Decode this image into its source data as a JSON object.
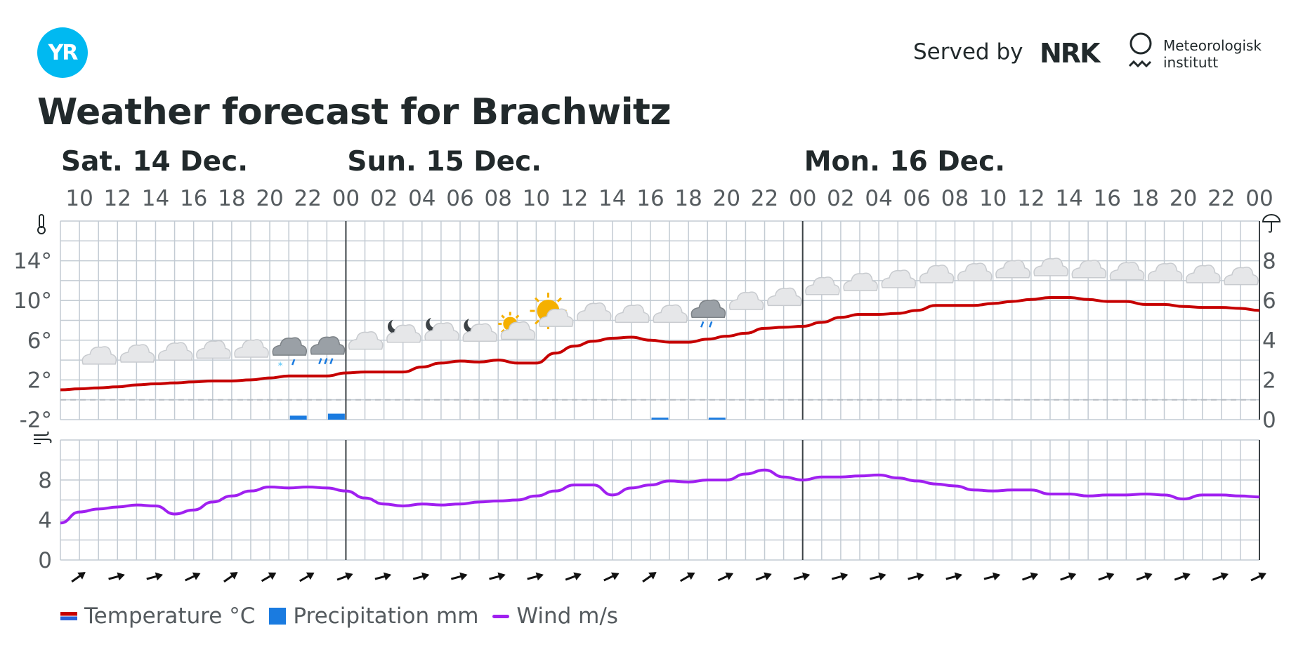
{
  "header": {
    "logo_text": "YR",
    "served_by": "Served by",
    "nrk": "NRK",
    "met_line1": "Meteorologisk",
    "met_line2": "institutt",
    "title": "Weather forecast for Brachwitz"
  },
  "colors": {
    "brand": "#00b9f1",
    "temperature": "#c60000",
    "precipitation": "#1a7be0",
    "wind": "#a020f0",
    "grid": "#c3cbd3"
  },
  "legend": {
    "temperature": "Temperature °C",
    "precipitation": "Precipitation mm",
    "wind": "Wind m/s"
  },
  "chart_data": [
    {
      "type": "line",
      "days": [
        {
          "label": "Sat. 14 Dec.",
          "start_hour": 9
        },
        {
          "label": "Sun. 15 Dec.",
          "start_hour": 24
        },
        {
          "label": "Mon. 16 Dec.",
          "start_hour": 48
        }
      ],
      "x": [
        9,
        10,
        11,
        12,
        13,
        14,
        15,
        16,
        17,
        18,
        19,
        20,
        21,
        22,
        23,
        24,
        25,
        26,
        27,
        28,
        29,
        30,
        31,
        32,
        33,
        34,
        35,
        36,
        37,
        38,
        39,
        40,
        41,
        42,
        43,
        44,
        45,
        46,
        47,
        48,
        49,
        50,
        51,
        52,
        53,
        54,
        55,
        56,
        57,
        58,
        59,
        60,
        61,
        62,
        63,
        64,
        65,
        66,
        67,
        68,
        69,
        70,
        71,
        72
      ],
      "x_tick_labels": [
        "10",
        "12",
        "14",
        "16",
        "18",
        "20",
        "22",
        "00",
        "02",
        "04",
        "06",
        "08",
        "10",
        "12",
        "14",
        "16",
        "18",
        "20",
        "22",
        "00",
        "02",
        "04",
        "06",
        "08",
        "10",
        "12",
        "14",
        "16",
        "18",
        "20",
        "22",
        "00"
      ],
      "left_axis": {
        "icon": "thermometer-icon",
        "ticks": [
          "14°",
          "10°",
          "6°",
          "2°",
          "-2°"
        ],
        "ylim": [
          -2,
          18
        ]
      },
      "right_axis": {
        "icon": "umbrella-icon",
        "ticks": [
          "8",
          "6",
          "4",
          "2",
          "0"
        ],
        "ylim": [
          0,
          10
        ]
      },
      "series": [
        {
          "key": "temperature",
          "axis": "left",
          "values": [
            1.0,
            1.1,
            1.2,
            1.3,
            1.5,
            1.6,
            1.7,
            1.8,
            1.9,
            1.9,
            2.0,
            2.2,
            2.4,
            2.4,
            2.4,
            2.7,
            2.8,
            2.8,
            2.8,
            3.3,
            3.7,
            3.9,
            3.8,
            4.0,
            3.7,
            3.7,
            4.7,
            5.4,
            5.9,
            6.2,
            6.3,
            6.0,
            5.8,
            5.8,
            6.1,
            6.4,
            6.7,
            7.2,
            7.3,
            7.4,
            7.8,
            8.3,
            8.6,
            8.6,
            8.7,
            9.0,
            9.5,
            9.5,
            9.5,
            9.7,
            9.9,
            10.1,
            10.3,
            10.3,
            10.1,
            9.9,
            9.9,
            9.6,
            9.6,
            9.4,
            9.3,
            9.3,
            9.2,
            9.0
          ]
        },
        {
          "key": "precipitation",
          "axis": "right",
          "bars": [
            {
              "x": 21.5,
              "value": 0.2
            },
            {
              "x": 23.5,
              "value": 0.3
            },
            {
              "x": 40.5,
              "value": 0.1
            },
            {
              "x": 43.5,
              "value": 0.1
            }
          ]
        }
      ],
      "weather_icons": [
        {
          "x": 11,
          "t": 4.3,
          "icon": "cloud-icon"
        },
        {
          "x": 13,
          "t": 4.5,
          "icon": "cloud-icon"
        },
        {
          "x": 15,
          "t": 4.7,
          "icon": "cloud-icon"
        },
        {
          "x": 17,
          "t": 4.9,
          "icon": "cloud-icon"
        },
        {
          "x": 19,
          "t": 5.0,
          "icon": "cloud-icon"
        },
        {
          "x": 21,
          "t": 5.2,
          "icon": "sleet-icon"
        },
        {
          "x": 23,
          "t": 5.3,
          "icon": "rain-icon"
        },
        {
          "x": 25,
          "t": 5.8,
          "icon": "cloud-icon"
        },
        {
          "x": 27,
          "t": 6.5,
          "icon": "partly-cloudy-night-icon"
        },
        {
          "x": 29,
          "t": 6.7,
          "icon": "partly-cloudy-night-icon"
        },
        {
          "x": 31,
          "t": 6.6,
          "icon": "partly-cloudy-night-icon"
        },
        {
          "x": 33,
          "t": 6.8,
          "icon": "partly-cloudy-day-icon"
        },
        {
          "x": 35,
          "t": 8.1,
          "icon": "partly-cloudy-day-icon"
        },
        {
          "x": 37,
          "t": 8.7,
          "icon": "cloud-icon"
        },
        {
          "x": 39,
          "t": 8.5,
          "icon": "cloud-icon"
        },
        {
          "x": 41,
          "t": 8.5,
          "icon": "cloud-icon"
        },
        {
          "x": 43,
          "t": 9.0,
          "icon": "light-rain-icon"
        },
        {
          "x": 45,
          "t": 9.8,
          "icon": "cloud-icon"
        },
        {
          "x": 47,
          "t": 10.2,
          "icon": "cloud-icon"
        },
        {
          "x": 49,
          "t": 11.3,
          "icon": "cloud-icon"
        },
        {
          "x": 51,
          "t": 11.7,
          "icon": "cloud-icon"
        },
        {
          "x": 53,
          "t": 12.0,
          "icon": "cloud-icon"
        },
        {
          "x": 55,
          "t": 12.5,
          "icon": "cloud-icon"
        },
        {
          "x": 57,
          "t": 12.7,
          "icon": "cloud-icon"
        },
        {
          "x": 59,
          "t": 13.0,
          "icon": "cloud-icon"
        },
        {
          "x": 61,
          "t": 13.2,
          "icon": "cloud-icon"
        },
        {
          "x": 63,
          "t": 13.0,
          "icon": "cloud-icon"
        },
        {
          "x": 65,
          "t": 12.8,
          "icon": "cloud-icon"
        },
        {
          "x": 67,
          "t": 12.7,
          "icon": "cloud-icon"
        },
        {
          "x": 69,
          "t": 12.5,
          "icon": "cloud-icon"
        },
        {
          "x": 71,
          "t": 12.3,
          "icon": "cloud-icon"
        }
      ]
    },
    {
      "type": "line",
      "left_axis": {
        "icon": "wind-icon",
        "ticks": [
          "8",
          "4",
          "0"
        ],
        "ylim": [
          0,
          12
        ]
      },
      "series": [
        {
          "key": "wind",
          "values": [
            3.7,
            4.8,
            5.1,
            5.3,
            5.5,
            5.4,
            4.6,
            5.0,
            5.8,
            6.4,
            6.9,
            7.3,
            7.2,
            7.3,
            7.2,
            6.9,
            6.2,
            5.6,
            5.4,
            5.6,
            5.5,
            5.6,
            5.8,
            5.9,
            6.0,
            6.4,
            6.9,
            7.5,
            7.5,
            6.5,
            7.2,
            7.5,
            7.9,
            7.8,
            8.0,
            8.0,
            8.6,
            9.0,
            8.3,
            8.0,
            8.3,
            8.3,
            8.4,
            8.5,
            8.2,
            7.9,
            7.6,
            7.4,
            7.0,
            6.9,
            7.0,
            7.0,
            6.6,
            6.6,
            6.4,
            6.5,
            6.5,
            6.6,
            6.5,
            6.1,
            6.5,
            6.5,
            6.4,
            6.3
          ]
        },
        {
          "key": "wind_direction",
          "label": "direction arrows",
          "x_step": 2,
          "x": [
            9,
            11,
            13,
            15,
            17,
            19,
            21,
            23,
            25,
            27,
            29,
            31,
            33,
            35,
            37,
            39,
            41,
            43,
            45,
            47,
            49,
            51,
            53,
            55,
            57,
            59,
            61,
            63,
            65,
            67,
            69,
            71
          ],
          "rotation_deg": [
            -35,
            -15,
            -15,
            -25,
            -35,
            -30,
            -30,
            -20,
            -15,
            -15,
            -15,
            -15,
            -15,
            -20,
            -25,
            -35,
            -30,
            -25,
            -20,
            -15,
            -15,
            -15,
            -15,
            -15,
            -15,
            -20,
            -20,
            -20,
            -20,
            -20,
            -20,
            -25
          ]
        }
      ]
    }
  ]
}
